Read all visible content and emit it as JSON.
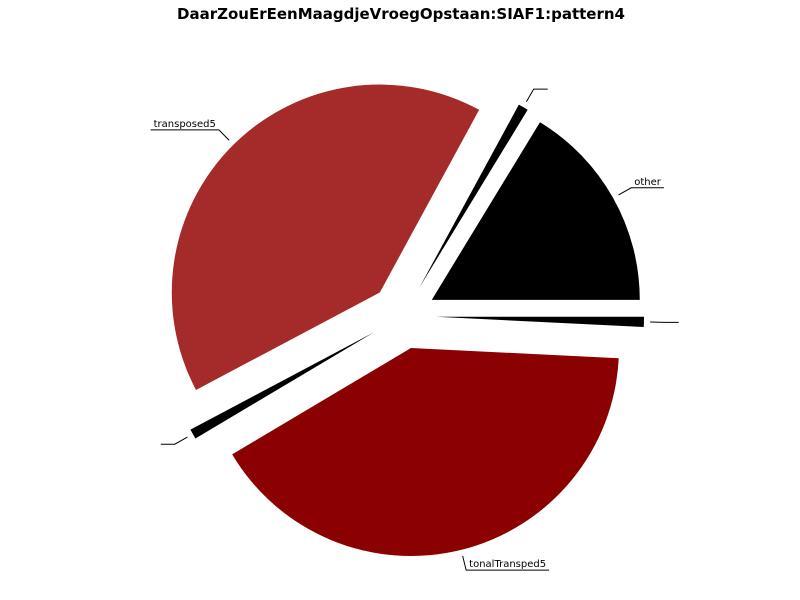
{
  "chart_data": {
    "type": "pie",
    "title": "DaarZouErEenMaagdjeVroegOpstaan:SIAF1:pattern4",
    "slices": [
      {
        "label": "other",
        "value": 16.7,
        "color": "#000000",
        "exploded": true
      },
      {
        "label": "",
        "value": 0.8,
        "color": "#000000",
        "exploded": true
      },
      {
        "label": "transposed5",
        "value": 41.7,
        "color": "#a52a2a",
        "exploded": true
      },
      {
        "label": "",
        "value": 0.8,
        "color": "#000000",
        "exploded": true
      },
      {
        "label": "tonalTransped5",
        "value": 41.7,
        "color": "#8b0000",
        "exploded": true
      },
      {
        "label": "",
        "value": 0.8,
        "color": "#000000",
        "exploded": true
      }
    ]
  }
}
